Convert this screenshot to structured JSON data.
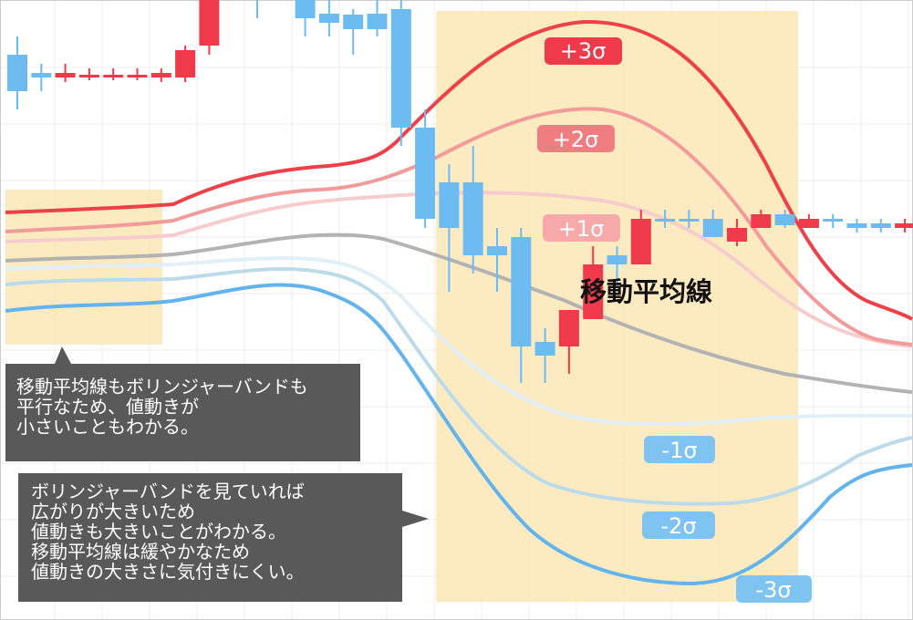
{
  "chart_data": {
    "type": "candlestick",
    "bands": {
      "sma": "移動平均線",
      "plus": [
        "+1σ",
        "+2σ",
        "+3σ"
      ],
      "minus": [
        "-1σ",
        "-2σ",
        "-3σ"
      ]
    },
    "labels": {
      "plus1": "+1σ",
      "plus2": "+2σ",
      "plus3": "+3σ",
      "minus1": "-1σ",
      "minus2": "-2σ",
      "minus3": "-3σ",
      "sma": "移動平均線"
    },
    "candles": [
      {
        "o": 0.62,
        "c": 0.58,
        "h": 0.64,
        "l": 0.56
      },
      {
        "o": 0.6,
        "c": 0.595,
        "h": 0.61,
        "l": 0.58
      },
      {
        "o": 0.595,
        "c": 0.6,
        "h": 0.61,
        "l": 0.59
      },
      {
        "o": 0.598,
        "c": 0.598,
        "h": 0.605,
        "l": 0.592
      },
      {
        "o": 0.598,
        "c": 0.598,
        "h": 0.605,
        "l": 0.592
      },
      {
        "o": 0.598,
        "c": 0.598,
        "h": 0.605,
        "l": 0.592
      },
      {
        "o": 0.595,
        "c": 0.6,
        "h": 0.605,
        "l": 0.59
      },
      {
        "o": 0.595,
        "c": 0.625,
        "h": 0.63,
        "l": 0.59
      },
      {
        "o": 0.63,
        "c": 0.7,
        "h": 0.76,
        "l": 0.62
      },
      {
        "o": 0.71,
        "c": 0.695,
        "h": 0.72,
        "l": 0.68
      },
      {
        "o": 0.7,
        "c": 0.685,
        "h": 0.71,
        "l": 0.66
      },
      {
        "o": 0.68,
        "c": 0.71,
        "h": 0.75,
        "l": 0.68
      },
      {
        "o": 0.71,
        "c": 0.66,
        "h": 0.72,
        "l": 0.64
      },
      {
        "o": 0.665,
        "c": 0.655,
        "h": 0.69,
        "l": 0.64
      },
      {
        "o": 0.664,
        "c": 0.648,
        "h": 0.67,
        "l": 0.62
      },
      {
        "o": 0.665,
        "c": 0.648,
        "h": 0.68,
        "l": 0.64
      },
      {
        "o": 0.67,
        "c": 0.54,
        "h": 0.68,
        "l": 0.52
      },
      {
        "o": 0.54,
        "c": 0.44,
        "h": 0.56,
        "l": 0.43
      },
      {
        "o": 0.48,
        "c": 0.43,
        "h": 0.5,
        "l": 0.36
      },
      {
        "o": 0.48,
        "c": 0.4,
        "h": 0.52,
        "l": 0.38
      },
      {
        "o": 0.41,
        "c": 0.4,
        "h": 0.43,
        "l": 0.36
      },
      {
        "o": 0.42,
        "c": 0.3,
        "h": 0.43,
        "l": 0.26
      },
      {
        "o": 0.305,
        "c": 0.29,
        "h": 0.32,
        "l": 0.26
      },
      {
        "o": 0.3,
        "c": 0.34,
        "h": 0.34,
        "l": 0.27
      },
      {
        "o": 0.33,
        "c": 0.39,
        "h": 0.41,
        "l": 0.33
      },
      {
        "o": 0.4,
        "c": 0.39,
        "h": 0.41,
        "l": 0.37
      },
      {
        "o": 0.39,
        "c": 0.44,
        "h": 0.45,
        "l": 0.39
      },
      {
        "o": 0.44,
        "c": 0.438,
        "h": 0.45,
        "l": 0.43
      },
      {
        "o": 0.44,
        "c": 0.437,
        "h": 0.45,
        "l": 0.43
      },
      {
        "o": 0.44,
        "c": 0.42,
        "h": 0.45,
        "l": 0.42
      },
      {
        "o": 0.415,
        "c": 0.43,
        "h": 0.44,
        "l": 0.41
      },
      {
        "o": 0.43,
        "c": 0.445,
        "h": 0.45,
        "l": 0.43
      },
      {
        "o": 0.445,
        "c": 0.433,
        "h": 0.45,
        "l": 0.43
      },
      {
        "o": 0.43,
        "c": 0.44,
        "h": 0.445,
        "l": 0.43
      },
      {
        "o": 0.44,
        "c": 0.437,
        "h": 0.445,
        "l": 0.43
      },
      {
        "o": 0.435,
        "c": 0.43,
        "h": 0.44,
        "l": 0.425
      },
      {
        "o": 0.435,
        "c": 0.43,
        "h": 0.44,
        "l": 0.425
      },
      {
        "o": 0.43,
        "c": 0.435,
        "h": 0.44,
        "l": 0.425
      },
      {
        "o": 0.43,
        "c": 0.44,
        "h": 0.445,
        "l": 0.425
      }
    ]
  },
  "colors": {
    "up": "#ef3a4c",
    "down": "#6cbcf2",
    "highlight": "#fbe8b6",
    "sma": "#b3b3b3",
    "callout": "#595959"
  },
  "notes": {
    "note1": [
      "移動平均線もボリンジャーバンドも",
      "平行なため、値動きが",
      "小さいこともわかる。"
    ],
    "note2": [
      "ボリンジャーバンドを見ていれば",
      "広がりが大きいため",
      "値動きも大きいことがわかる。",
      "移動平均線は緩やかなため",
      "値動きの大きさに気付きにくい。"
    ]
  }
}
